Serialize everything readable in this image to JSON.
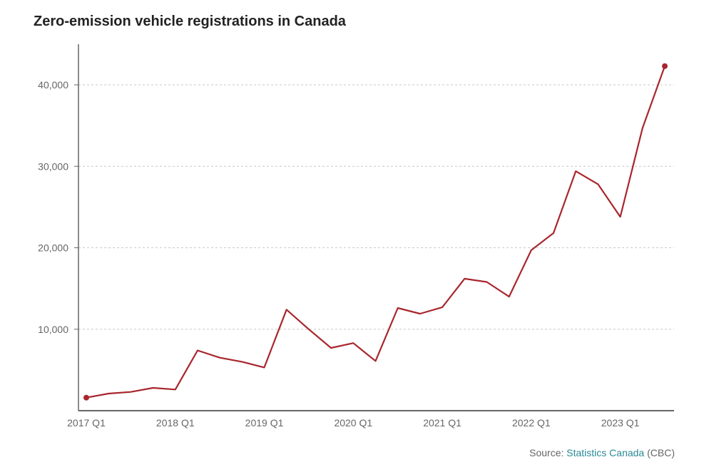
{
  "chart_data": {
    "type": "line",
    "title": "Zero-emission vehicle registrations in Canada",
    "xlabel": "",
    "ylabel": "",
    "x_tick_labels": [
      "2017 Q1",
      "2018 Q1",
      "2019 Q1",
      "2020 Q1",
      "2021 Q1",
      "2022 Q1",
      "2023 Q1"
    ],
    "y_ticks": [
      10000,
      20000,
      30000,
      40000
    ],
    "y_tick_labels": [
      "10,000",
      "20,000",
      "30,000",
      "40,000"
    ],
    "ylim": [
      0,
      45000
    ],
    "grid": "horizontal-dashed",
    "series": [
      {
        "name": "Zero-emission vehicle registrations",
        "color": "#a8262e",
        "x": [
          "2017 Q1",
          "2017 Q2",
          "2017 Q3",
          "2017 Q4",
          "2018 Q1",
          "2018 Q2",
          "2018 Q3",
          "2018 Q4",
          "2019 Q1",
          "2019 Q2",
          "2019 Q3",
          "2019 Q4",
          "2020 Q1",
          "2020 Q2",
          "2020 Q3",
          "2020 Q4",
          "2021 Q1",
          "2021 Q2",
          "2021 Q3",
          "2021 Q4",
          "2022 Q1",
          "2022 Q2",
          "2022 Q3",
          "2022 Q4",
          "2023 Q1",
          "2023 Q2",
          "2023 Q3"
        ],
        "values": [
          1600,
          2100,
          2300,
          2800,
          2600,
          7400,
          6500,
          6000,
          5300,
          12400,
          10000,
          7700,
          8300,
          6100,
          12600,
          11900,
          12700,
          16200,
          15800,
          14000,
          19700,
          21800,
          29400,
          27800,
          23800,
          34700,
          42300
        ]
      }
    ]
  },
  "source": {
    "prefix": "Source: ",
    "link_text": "Statistics Canada",
    "suffix": " (CBC)"
  }
}
